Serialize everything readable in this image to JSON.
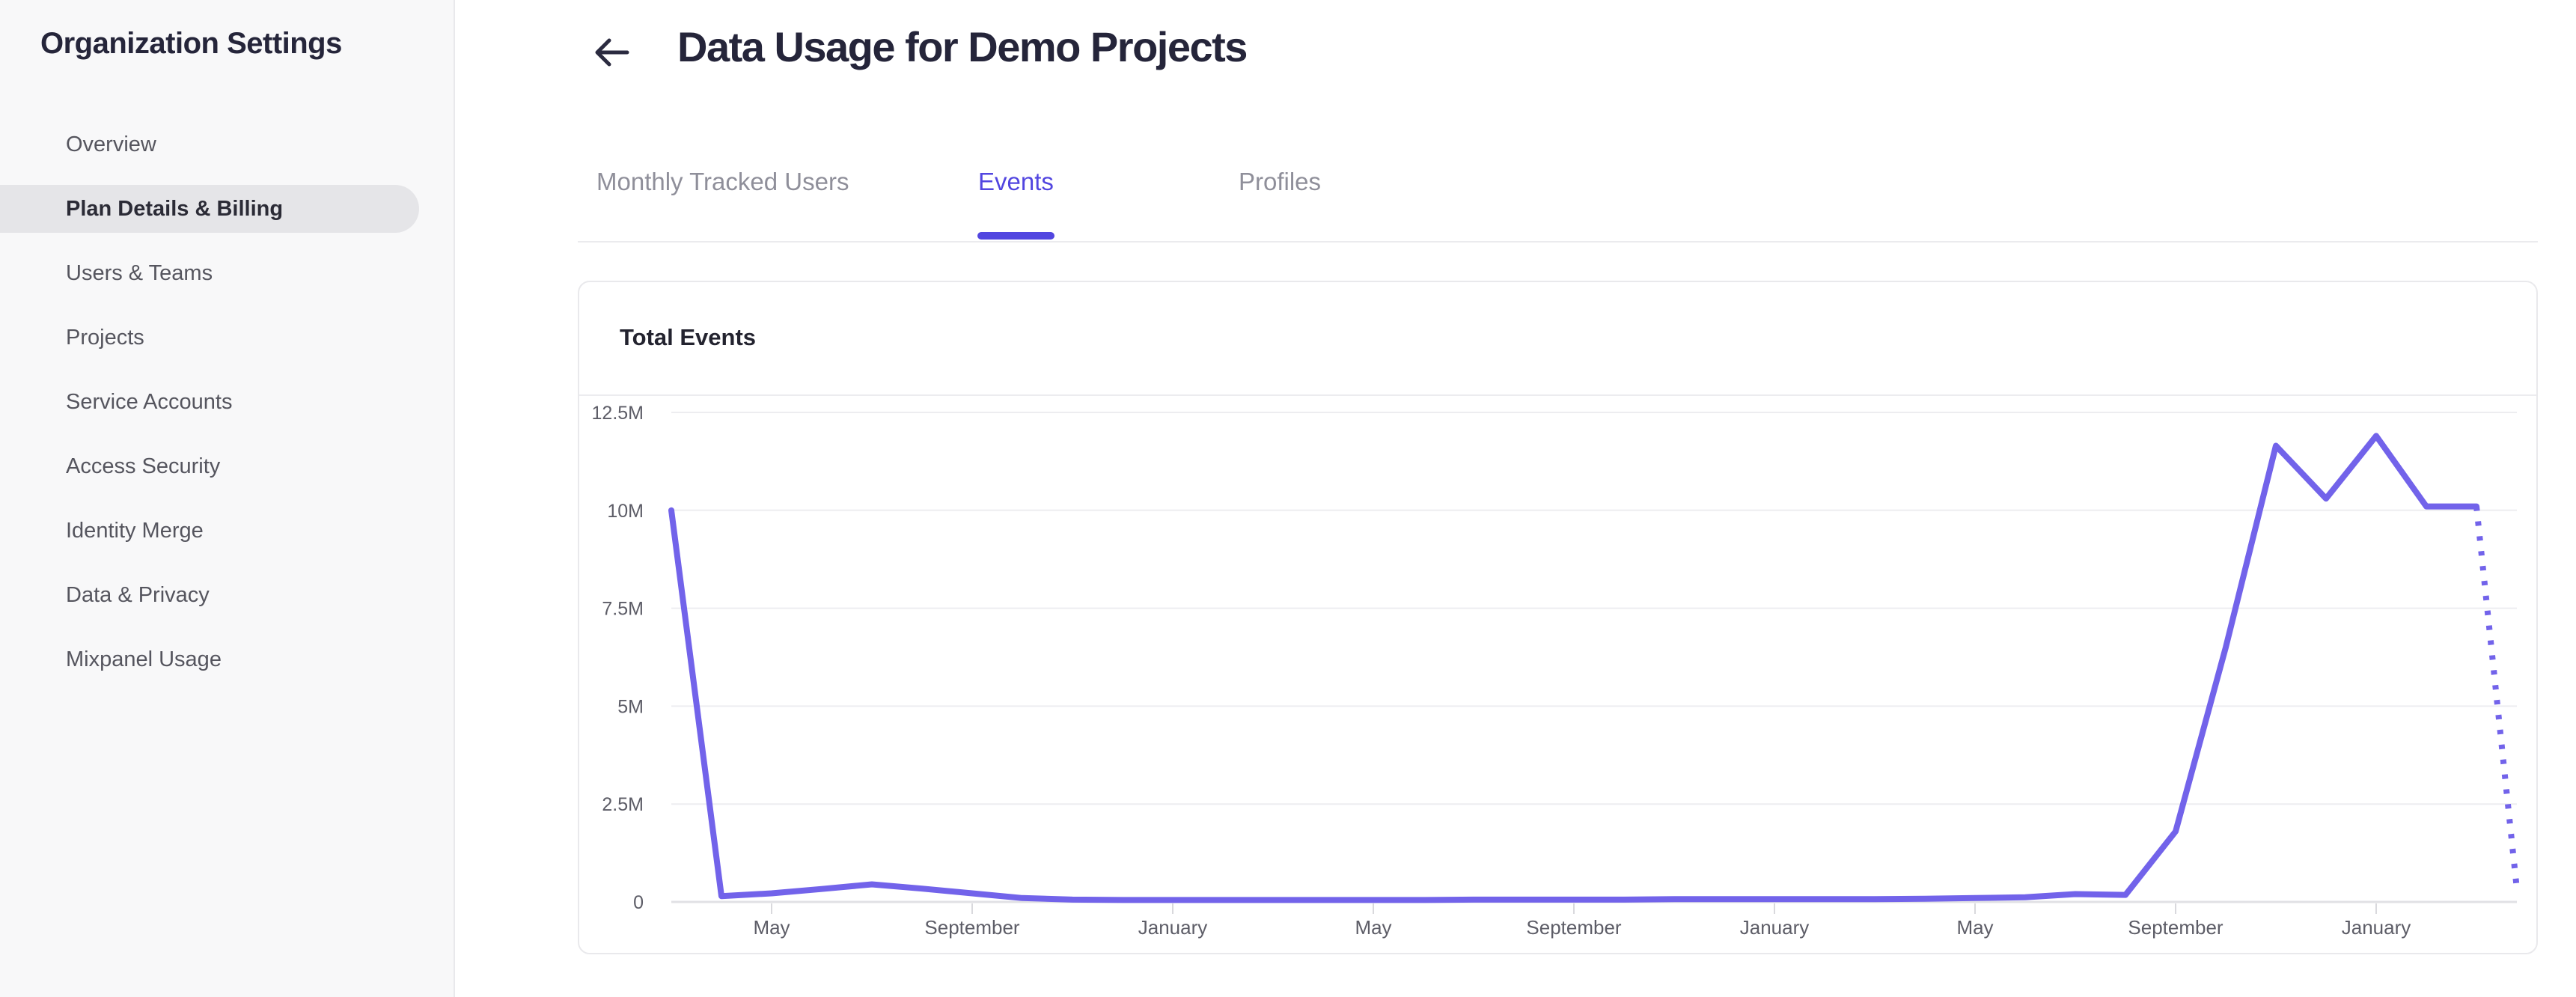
{
  "sidebar": {
    "title": "Organization Settings",
    "items": [
      {
        "label": "Overview",
        "selected": false
      },
      {
        "label": "Plan Details & Billing",
        "selected": true
      },
      {
        "label": "Users & Teams",
        "selected": false
      },
      {
        "label": "Projects",
        "selected": false
      },
      {
        "label": "Service Accounts",
        "selected": false
      },
      {
        "label": "Access Security",
        "selected": false
      },
      {
        "label": "Identity Merge",
        "selected": false
      },
      {
        "label": "Data & Privacy",
        "selected": false
      },
      {
        "label": "Mixpanel Usage",
        "selected": false
      }
    ]
  },
  "header": {
    "title": "Data Usage for Demo Projects",
    "back_icon": "left-arrow"
  },
  "tabs": [
    {
      "label": "Monthly Tracked Users",
      "active": false
    },
    {
      "label": "Events",
      "active": true
    },
    {
      "label": "Profiles",
      "active": false
    }
  ],
  "card": {
    "title": "Total Events"
  },
  "colors": {
    "accent": "#5246e0",
    "chart_line": "#7263ea",
    "sidebar_bg": "#f8f8f9",
    "selected_pill": "#e5e5e8",
    "border": "#e9e9ec",
    "gridline": "#ededf0",
    "axis_line": "#e1e1e5",
    "tick_mark": "#d9d9dd",
    "axis_label": "#5d5d67",
    "text_dark": "#25253a",
    "text_gray": "#55555e",
    "tab_inactive": "#8f8f9a"
  },
  "chart_data": {
    "type": "line",
    "title": "Total Events",
    "unit": "events",
    "grid": "horizontal",
    "legend": "none",
    "ylim_millions": [
      0,
      12.5
    ],
    "y_ticks": [
      {
        "label": "12.5M",
        "value": 12.5
      },
      {
        "label": "10M",
        "value": 10
      },
      {
        "label": "7.5M",
        "value": 7.5
      },
      {
        "label": "5M",
        "value": 5
      },
      {
        "label": "2.5M",
        "value": 2.5
      },
      {
        "label": "0",
        "value": 0
      }
    ],
    "x_ticks": [
      {
        "label": "May",
        "month": 2
      },
      {
        "label": "September",
        "month": 6
      },
      {
        "label": "January",
        "month": 10
      },
      {
        "label": "May",
        "month": 14
      },
      {
        "label": "September",
        "month": 18
      },
      {
        "label": "January",
        "month": 22
      },
      {
        "label": "May",
        "month": 26
      },
      {
        "label": "September",
        "month": 30
      },
      {
        "label": "January",
        "month": 34
      }
    ],
    "series": [
      {
        "name": "Total Events",
        "style": "solid",
        "points_month_vs_millions": [
          [
            0,
            10.0
          ],
          [
            1,
            0.15
          ],
          [
            2,
            0.22
          ],
          [
            3,
            0.33
          ],
          [
            4,
            0.45
          ],
          [
            5,
            0.34
          ],
          [
            6,
            0.22
          ],
          [
            7,
            0.1
          ],
          [
            8,
            0.06
          ],
          [
            9,
            0.05
          ],
          [
            10,
            0.05
          ],
          [
            11,
            0.05
          ],
          [
            12,
            0.05
          ],
          [
            13,
            0.05
          ],
          [
            14,
            0.05
          ],
          [
            15,
            0.05
          ],
          [
            16,
            0.06
          ],
          [
            17,
            0.06
          ],
          [
            18,
            0.06
          ],
          [
            19,
            0.06
          ],
          [
            20,
            0.07
          ],
          [
            21,
            0.07
          ],
          [
            22,
            0.07
          ],
          [
            23,
            0.07
          ],
          [
            24,
            0.07
          ],
          [
            25,
            0.08
          ],
          [
            26,
            0.1
          ],
          [
            27,
            0.12
          ],
          [
            28,
            0.2
          ],
          [
            29,
            0.18
          ],
          [
            30,
            1.8
          ],
          [
            31,
            6.5
          ],
          [
            32,
            11.65
          ],
          [
            33,
            10.3
          ],
          [
            34,
            11.9
          ],
          [
            35,
            10.1
          ],
          [
            36,
            10.1
          ]
        ]
      },
      {
        "name": "Total Events (incomplete period)",
        "style": "dotted",
        "points_month_vs_millions": [
          [
            36,
            10.1
          ],
          [
            36.8,
            0.4
          ]
        ]
      }
    ]
  }
}
